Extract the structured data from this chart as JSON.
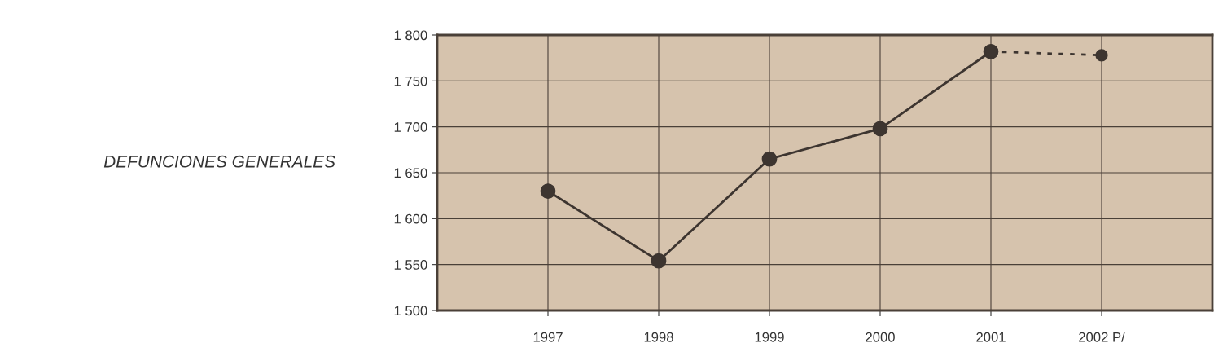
{
  "chart_data": {
    "type": "line",
    "ylabel": "DEFUNCIONES GENERALES",
    "categories": [
      "1997",
      "1998",
      "1999",
      "2000",
      "2001",
      "2002 P/"
    ],
    "series": [
      {
        "color": "#3d3530",
        "values": [
          1630,
          1554,
          1665,
          1698,
          1782,
          null
        ],
        "line_style": "solid"
      },
      {
        "color": "#3d3530",
        "values": [
          null,
          null,
          null,
          null,
          1782,
          1778
        ],
        "line_style": "dashed"
      }
    ],
    "ylim": [
      1500,
      1800
    ],
    "yticks": [
      {
        "value": 1500,
        "label": "1 500"
      },
      {
        "value": 1550,
        "label": "1 550"
      },
      {
        "value": 1600,
        "label": "1 600"
      },
      {
        "value": 1650,
        "label": "1 650"
      },
      {
        "value": 1700,
        "label": "1 700"
      },
      {
        "value": 1750,
        "label": "1 750"
      },
      {
        "value": 1800,
        "label": "1 800"
      }
    ],
    "grid": true,
    "marker": "circle"
  }
}
